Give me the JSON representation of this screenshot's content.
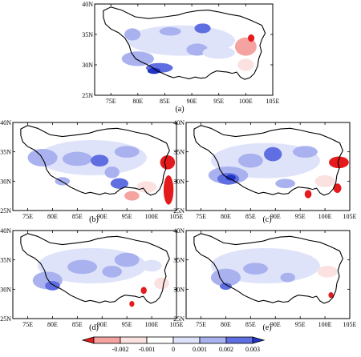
{
  "panels": [
    {
      "id": "a",
      "label": "(a)",
      "x_ticks": [
        "75E",
        "80E",
        "85E",
        "90E",
        "95E",
        "100E",
        "105E"
      ],
      "y_ticks": [
        "40N",
        "35N",
        "30N",
        "25N"
      ]
    },
    {
      "id": "b",
      "label": "(b)",
      "x_ticks": [
        "75E",
        "80E",
        "85E",
        "90E",
        "95E",
        "100E",
        "105E"
      ],
      "y_ticks": [
        "40N",
        "35N",
        "30N",
        "25N"
      ]
    },
    {
      "id": "c",
      "label": "(c)",
      "x_ticks": [
        "75E",
        "80E",
        "85E",
        "90E",
        "95E",
        "100E",
        "105E"
      ],
      "y_ticks": [
        "40N",
        "35N",
        "30N",
        "25N"
      ]
    },
    {
      "id": "d",
      "label": "(d)",
      "x_ticks": [
        "75E",
        "80E",
        "85E",
        "90E",
        "95E",
        "100E",
        "105E"
      ],
      "y_ticks": [
        "40N",
        "35N",
        "30N",
        "25N"
      ]
    },
    {
      "id": "e",
      "label": "(e)",
      "x_ticks": [
        "75E",
        "80E",
        "85E",
        "90E",
        "95E",
        "100E",
        "105E"
      ],
      "y_ticks": [
        "40N",
        "35N",
        "30N",
        "25N"
      ]
    }
  ],
  "colorbar": {
    "labels": [
      "-0.002",
      "-0.001",
      "0",
      "0.001",
      "0.002",
      "0.003"
    ],
    "colors": [
      "#e41a1c",
      "#f4a3a0",
      "#fbe1df",
      "#ffffff",
      "#dfe3fa",
      "#a9b2ef",
      "#5f6ee0",
      "#2233c8"
    ]
  }
}
